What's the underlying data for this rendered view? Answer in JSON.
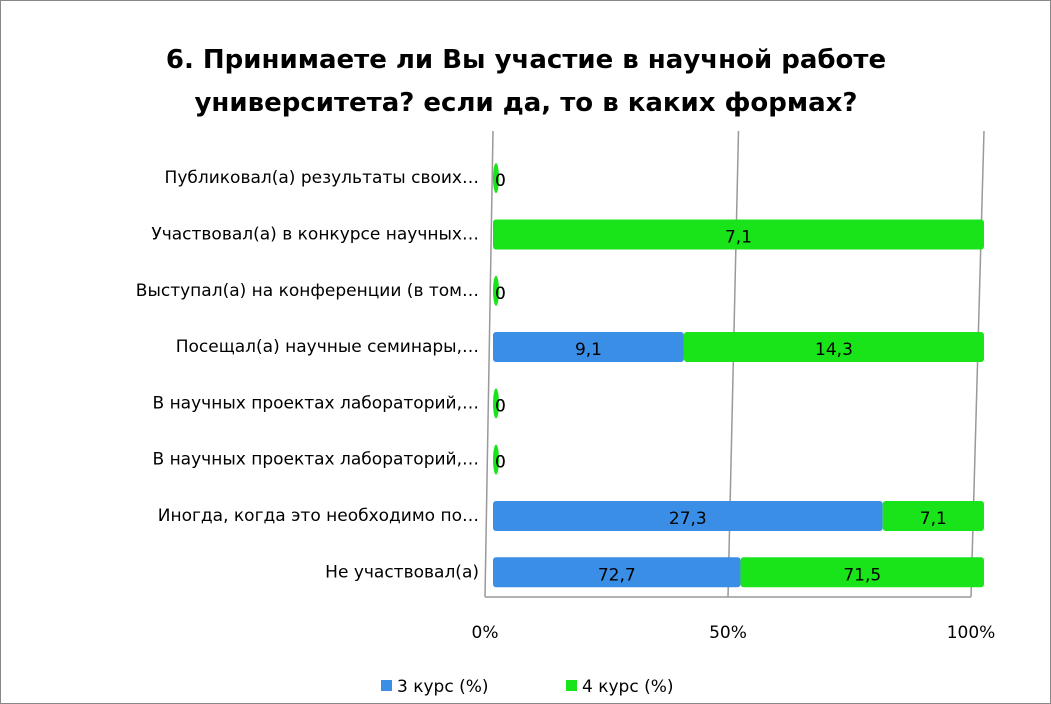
{
  "chart_data": {
    "type": "bar_stacked_100",
    "title": "6. Принимаете ли Вы участие в научной работе университета? если да, то в каких формах?",
    "categories": [
      "Публиковал(а) результаты своих…",
      "Участвовал(а) в конкурсе научных…",
      "Выступал(а) на конференции (в том…",
      "Посещал(а) научные семинары,…",
      "В научных проектах лабораторий,…",
      "В научных проектах лабораторий,…",
      "Иногда, когда это необходимо по…",
      "Не участвовал(а)"
    ],
    "series": [
      {
        "name": "3 курс (%)",
        "color": "#3a8ee6",
        "values": [
          0,
          0,
          0,
          9.1,
          0,
          0,
          27.3,
          72.7
        ],
        "value_labels": [
          "0",
          "0",
          "0",
          "9,1",
          "0",
          "0",
          "27,3",
          "72,7"
        ]
      },
      {
        "name": "4 курс (%)",
        "color": "#19e319",
        "values": [
          0,
          7.1,
          0,
          14.3,
          0,
          0,
          7.1,
          71.5
        ],
        "value_labels": [
          "0",
          "7,1",
          "0",
          "14,3",
          "0",
          "0",
          "7,1",
          "71,5"
        ]
      }
    ],
    "xlim": [
      0,
      100
    ],
    "xticks": [
      {
        "value": 0,
        "label": "0%"
      },
      {
        "value": 50,
        "label": "50%"
      },
      {
        "value": 100,
        "label": "100%"
      }
    ],
    "grid": true
  }
}
